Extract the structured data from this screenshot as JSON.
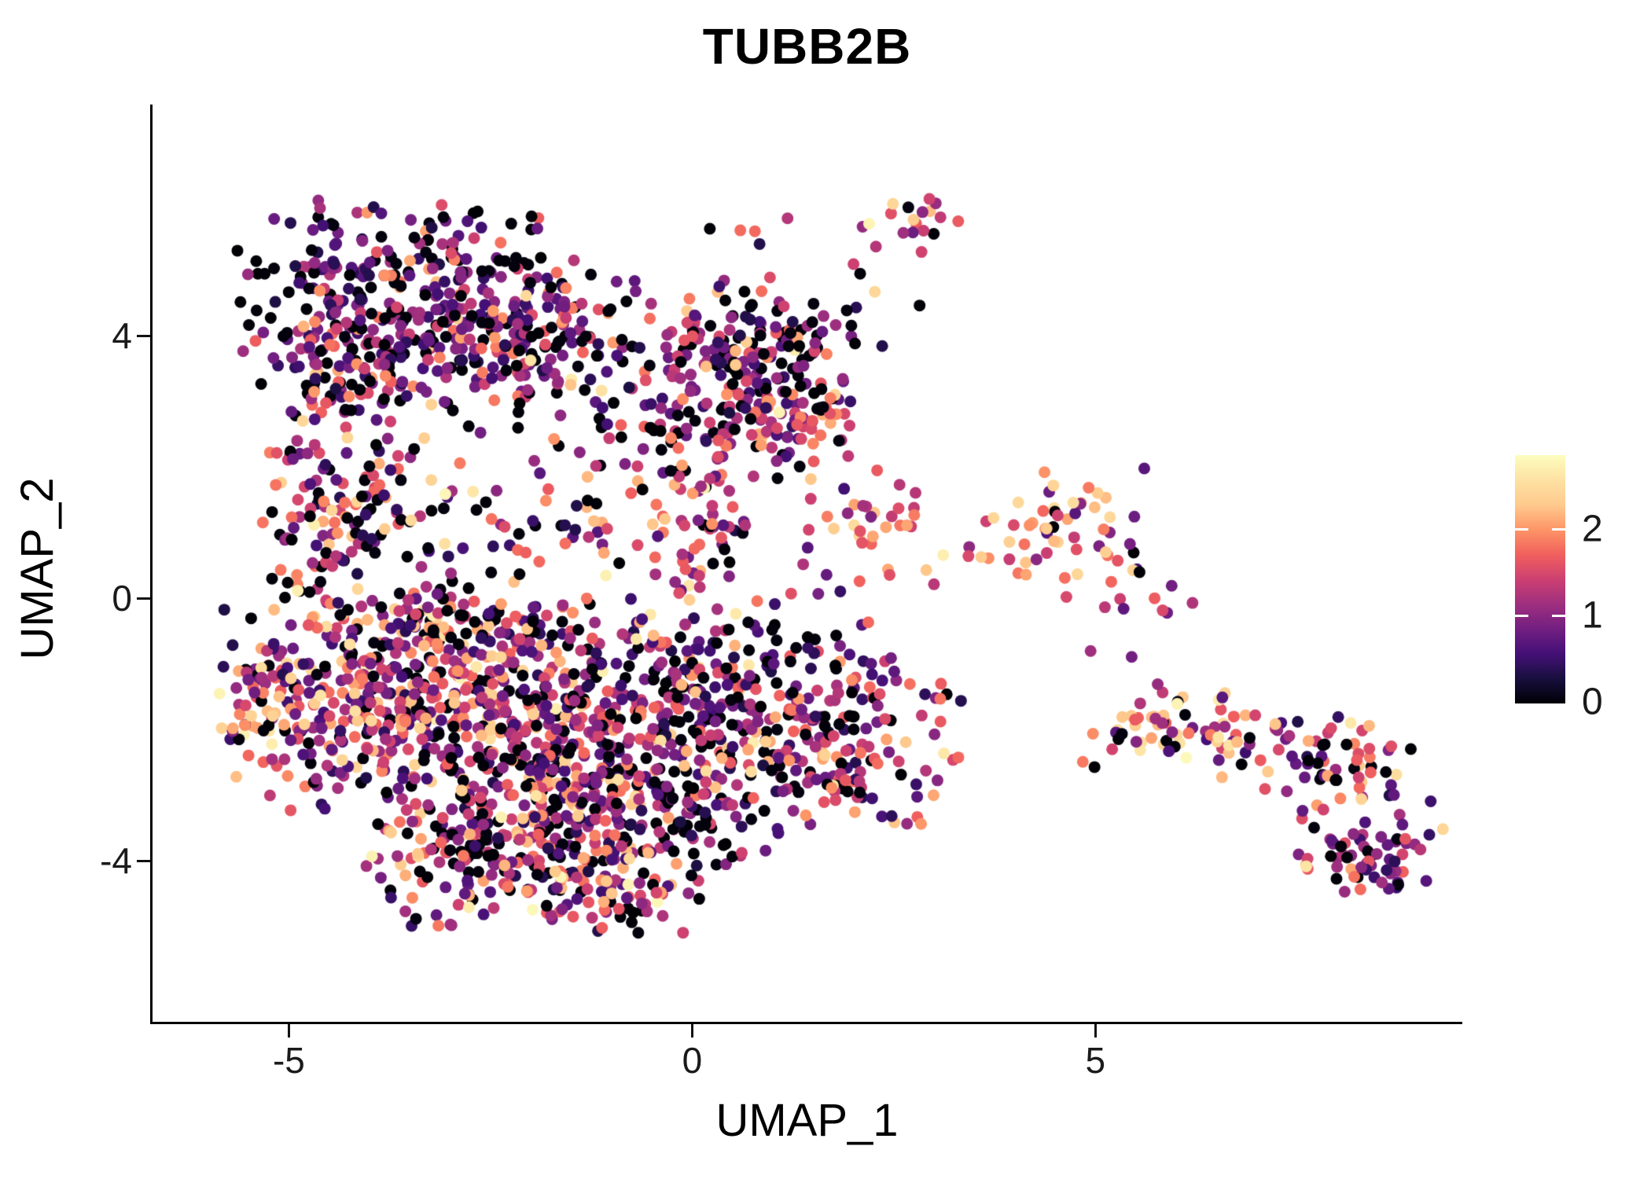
{
  "chart_data": {
    "type": "scatter",
    "title": "TUBB2B",
    "xlabel": "UMAP_1",
    "ylabel": "UMAP_2",
    "xlim": [
      -6.7,
      9.5
    ],
    "ylim": [
      -6.45,
      7.5
    ],
    "x_ticks": [
      -5,
      0,
      5
    ],
    "y_ticks": [
      -4,
      0,
      4
    ],
    "grid": false,
    "legend_position": "right",
    "point_radius_px": 7.5,
    "seed": 1337,
    "colorbar": {
      "tick_values": [
        0,
        1,
        2
      ],
      "vmin": 0,
      "vmax": 2.85,
      "palette": "magma",
      "stops": [
        [
          0.0,
          "#000004"
        ],
        [
          0.1,
          "#180f3e"
        ],
        [
          0.2,
          "#451077"
        ],
        [
          0.3,
          "#721f81"
        ],
        [
          0.4,
          "#9f2f7f"
        ],
        [
          0.5,
          "#cd4071"
        ],
        [
          0.6,
          "#f1605d"
        ],
        [
          0.7,
          "#fd9567"
        ],
        [
          0.8,
          "#feca8d"
        ],
        [
          0.9,
          "#fde2a3"
        ],
        [
          1.0,
          "#fcfdbf"
        ]
      ]
    },
    "value_profiles": {
      "dark": [
        [
          0.3,
          0,
          0.06
        ],
        [
          0.22,
          0.3,
          0.8
        ],
        [
          0.26,
          0.8,
          1.3
        ],
        [
          0.13,
          1.3,
          1.85
        ],
        [
          0.07,
          1.85,
          2.3
        ],
        [
          0.02,
          2.3,
          2.7
        ]
      ],
      "mixed": [
        [
          0.22,
          0,
          0.06
        ],
        [
          0.16,
          0.3,
          0.8
        ],
        [
          0.24,
          0.8,
          1.35
        ],
        [
          0.2,
          1.35,
          1.9
        ],
        [
          0.13,
          1.9,
          2.35
        ],
        [
          0.05,
          2.35,
          2.8
        ]
      ],
      "warm": [
        [
          0.07,
          0,
          0.06
        ],
        [
          0.1,
          0.4,
          0.9
        ],
        [
          0.17,
          0.9,
          1.4
        ],
        [
          0.26,
          1.4,
          2.0
        ],
        [
          0.29,
          2.0,
          2.45
        ],
        [
          0.11,
          2.45,
          2.85
        ]
      ],
      "purple": [
        [
          0.13,
          0,
          0.06
        ],
        [
          0.28,
          0.4,
          0.9
        ],
        [
          0.33,
          0.9,
          1.35
        ],
        [
          0.15,
          1.35,
          1.9
        ],
        [
          0.08,
          1.9,
          2.4
        ],
        [
          0.03,
          2.4,
          2.8
        ]
      ]
    },
    "clusters": [
      {
        "name": "topleft-upper",
        "cx": -3.45,
        "cy": 4.55,
        "sx": 1.05,
        "sy": 0.72,
        "n": 320,
        "profile": "dark"
      },
      {
        "name": "topleft-lower-left",
        "cx": -4.35,
        "cy": 3.35,
        "sx": 0.55,
        "sy": 0.5,
        "n": 90,
        "profile": "dark"
      },
      {
        "name": "topleft-right-ext",
        "cx": -1.95,
        "cy": 3.75,
        "sx": 0.6,
        "sy": 0.65,
        "n": 130,
        "profile": "dark"
      },
      {
        "name": "top-right-lobe",
        "cx": 0.55,
        "cy": 3.55,
        "sx": 0.85,
        "sy": 0.62,
        "n": 230,
        "profile": "dark"
      },
      {
        "name": "lobe-lower-edge",
        "cx": 1.35,
        "cy": 2.55,
        "sx": 0.5,
        "sy": 0.35,
        "n": 50,
        "profile": "mixed"
      },
      {
        "name": "left-column",
        "cx": -4.25,
        "cy": 1.25,
        "sx": 0.5,
        "sy": 0.8,
        "n": 140,
        "profile": "mixed"
      },
      {
        "name": "hole-scatter",
        "cx": -1.55,
        "cy": 1.15,
        "sx": 1.05,
        "sy": 0.75,
        "n": 80,
        "profile": "mixed"
      },
      {
        "name": "right-column",
        "cx": 0.1,
        "cy": 1.5,
        "sx": 0.35,
        "sy": 0.75,
        "n": 70,
        "profile": "mixed"
      },
      {
        "name": "top-small",
        "cx": 2.8,
        "cy": 5.7,
        "sx": 0.28,
        "sy": 0.25,
        "n": 16,
        "profile": "mixed"
      },
      {
        "name": "trail",
        "cx": 2.0,
        "cy": 4.6,
        "sx": 0.45,
        "sy": 0.5,
        "n": 10,
        "profile": "mixed"
      },
      {
        "name": "sparse-top",
        "cx": 0.4,
        "cy": 5.4,
        "sx": 0.5,
        "sy": 0.4,
        "n": 7,
        "profile": "mixed"
      },
      {
        "name": "mid-right-1",
        "cx": 2.35,
        "cy": 1.15,
        "sx": 0.42,
        "sy": 0.48,
        "n": 34,
        "profile": "warm"
      },
      {
        "name": "mid-right-2",
        "cx": 4.55,
        "cy": 1.0,
        "sx": 0.55,
        "sy": 0.5,
        "n": 60,
        "profile": "warm"
      },
      {
        "name": "mr-connector",
        "cx": 1.45,
        "cy": 0.0,
        "sx": 0.45,
        "sy": 0.5,
        "n": 12,
        "profile": "purple"
      },
      {
        "name": "diag-connector",
        "cx": 5.5,
        "cy": -0.6,
        "sx": 0.55,
        "sy": 0.6,
        "n": 12,
        "profile": "purple"
      },
      {
        "name": "tail-upper",
        "cx": 6.35,
        "cy": -2.05,
        "sx": 0.72,
        "sy": 0.33,
        "n": 75,
        "profile": "warm"
      },
      {
        "name": "tail-mid",
        "cx": 8.1,
        "cy": -2.5,
        "sx": 0.55,
        "sy": 0.42,
        "n": 60,
        "profile": "mixed"
      },
      {
        "name": "tail-lower",
        "cx": 8.4,
        "cy": -3.85,
        "sx": 0.5,
        "sy": 0.33,
        "n": 65,
        "profile": "purple"
      },
      {
        "name": "blob-left-warm",
        "cx": -5.15,
        "cy": -1.7,
        "sx": 0.35,
        "sy": 0.75,
        "n": 65,
        "profile": "warm"
      },
      {
        "name": "blob-b1",
        "cx": -3.65,
        "cy": -1.55,
        "sx": 1.0,
        "sy": 0.8,
        "n": 360,
        "profile": "mixed"
      },
      {
        "name": "blob-b2",
        "cx": -1.7,
        "cy": -2.2,
        "sx": 1.0,
        "sy": 0.85,
        "n": 360,
        "profile": "mixed"
      },
      {
        "name": "blob-b3",
        "cx": -2.4,
        "cy": -3.9,
        "sx": 0.8,
        "sy": 0.5,
        "n": 200,
        "profile": "mixed"
      },
      {
        "name": "blob-b4",
        "cx": 0.15,
        "cy": -1.25,
        "sx": 0.8,
        "sy": 0.65,
        "n": 170,
        "profile": "dark"
      },
      {
        "name": "blob-b5",
        "cx": 1.7,
        "cy": -2.25,
        "sx": 0.75,
        "sy": 0.62,
        "n": 190,
        "profile": "mixed"
      },
      {
        "name": "blob-b6",
        "cx": -0.35,
        "cy": -3.15,
        "sx": 0.7,
        "sy": 0.6,
        "n": 150,
        "profile": "dark"
      },
      {
        "name": "blob-bottom-tip",
        "cx": -0.85,
        "cy": -4.5,
        "sx": 0.5,
        "sy": 0.3,
        "n": 60,
        "profile": "mixed"
      },
      {
        "name": "blob-top-edge",
        "cx": -2.9,
        "cy": -0.35,
        "sx": 0.9,
        "sy": 0.3,
        "n": 90,
        "profile": "mixed"
      }
    ]
  }
}
